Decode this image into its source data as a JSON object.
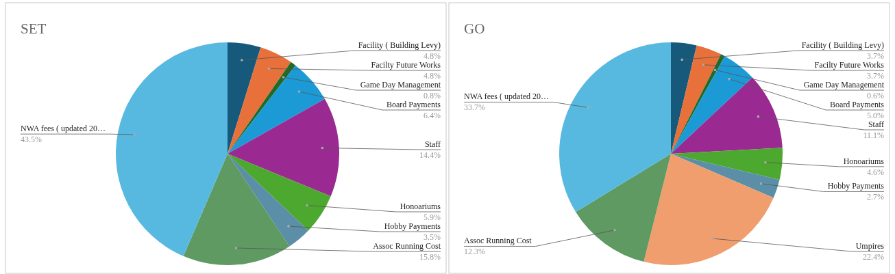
{
  "chart_data": [
    {
      "type": "pie",
      "title": "SET",
      "categories": [
        "Facility ( Building Levy)",
        "Facilty Future Works",
        "Game Day Management",
        "Board Payments",
        "Staff",
        "Honoariums",
        "Hobby Payments",
        "Assoc Running Cost",
        "NWA fees ( updated 20…"
      ],
      "values": [
        4.8,
        4.8,
        0.8,
        6.4,
        14.4,
        5.9,
        3.5,
        15.8,
        43.5
      ],
      "value_labels": [
        "4.8%",
        "4.8%",
        "0.8%",
        "6.4%",
        "14.4%",
        "5.9%",
        "3.5%",
        "15.8%",
        "43.5%"
      ],
      "colors": [
        "#17597a",
        "#e8703a",
        "#1f6b27",
        "#1c9ad6",
        "#9a2a92",
        "#4da82f",
        "#5b8fa8",
        "#5f9a62",
        "#58b9e0"
      ]
    },
    {
      "type": "pie",
      "title": "GO",
      "categories": [
        "Facility ( Building Levy)",
        "Facilty Future Works",
        "Game Day Management",
        "Board Payments",
        "Staff",
        "Honoariums",
        "Hobby Payments",
        "Umpires",
        "Assoc Running Cost",
        "NWA fees ( updated 20…"
      ],
      "values": [
        3.7,
        3.7,
        0.6,
        5.0,
        11.1,
        4.6,
        2.7,
        22.4,
        12.3,
        33.7
      ],
      "value_labels": [
        "3.7%",
        "3.7%",
        "0.6%",
        "5.0%",
        "11.1%",
        "4.6%",
        "2.7%",
        "22.4%",
        "12.3%",
        "33.7%"
      ],
      "colors": [
        "#17597a",
        "#e8703a",
        "#1f6b27",
        "#1c9ad6",
        "#9a2a92",
        "#4da82f",
        "#5b8fa8",
        "#f09e6e",
        "#5f9a62",
        "#58b9e0"
      ]
    }
  ]
}
